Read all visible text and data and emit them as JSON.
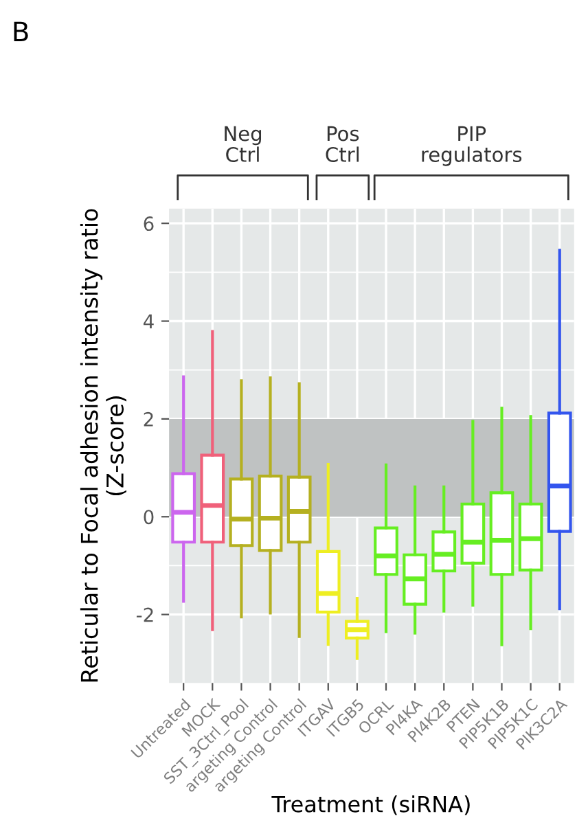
{
  "chart_data": {
    "type": "box",
    "xlabel": "Treatment (siRNA)",
    "ylabel": "Reticular to Focal adhesion intensity ratio\n(Z-score)",
    "categories": [
      "Untreated",
      "MOCK",
      "SST_3Ctrl_Pool",
      "argeting Control",
      "argeting Control",
      "ITGAV",
      "ITGB5",
      "OCRL",
      "PI4KA",
      "PI4K2B",
      "PTEN",
      "PIP5K1B",
      "PIP5K1C",
      "PIK3C2A"
    ],
    "colors": [
      "#cc66ee",
      "#f0607a",
      "#b5b020",
      "#b5b020",
      "#b5b020",
      "#eeee22",
      "#eeee22",
      "#66ee22",
      "#66ee22",
      "#66ee22",
      "#66ee22",
      "#66ee22",
      "#66ee22",
      "#3355ee"
    ],
    "boxes": [
      {
        "low": -1.73,
        "q1": -0.52,
        "median": 0.09,
        "q3": 0.88,
        "high": 2.86
      },
      {
        "low": -2.31,
        "q1": -0.52,
        "median": 0.23,
        "q3": 1.26,
        "high": 3.79
      },
      {
        "low": -2.05,
        "q1": -0.59,
        "median": -0.05,
        "q3": 0.77,
        "high": 2.78
      },
      {
        "low": -1.97,
        "q1": -0.69,
        "median": -0.03,
        "q3": 0.83,
        "high": 2.84
      },
      {
        "low": -2.45,
        "q1": -0.52,
        "median": 0.11,
        "q3": 0.81,
        "high": 2.72
      },
      {
        "low": -2.61,
        "q1": -1.95,
        "median": -1.57,
        "q3": -0.71,
        "high": 1.07
      },
      {
        "low": -2.9,
        "q1": -2.48,
        "median": -2.31,
        "q3": -2.14,
        "high": -1.67
      },
      {
        "low": -2.35,
        "q1": -1.18,
        "median": -0.8,
        "q3": -0.23,
        "high": 1.06
      },
      {
        "low": -2.38,
        "q1": -1.79,
        "median": -1.27,
        "q3": -0.78,
        "high": 0.61
      },
      {
        "low": -1.93,
        "q1": -1.11,
        "median": -0.77,
        "q3": -0.31,
        "high": 0.61
      },
      {
        "low": -1.81,
        "q1": -0.95,
        "median": -0.52,
        "q3": 0.26,
        "high": 1.95
      },
      {
        "low": -2.62,
        "q1": -1.18,
        "median": -0.48,
        "q3": 0.49,
        "high": 2.22
      },
      {
        "low": -2.29,
        "q1": -1.09,
        "median": -0.45,
        "q3": 0.26,
        "high": 2.05
      },
      {
        "low": -1.88,
        "q1": -0.3,
        "median": 0.63,
        "q3": 2.12,
        "high": 5.45
      }
    ],
    "ylim": [
      -3.4,
      6.3
    ],
    "yticks": [
      -2,
      0,
      2,
      4,
      6
    ],
    "bands": [
      {
        "axis": "y",
        "from": 0,
        "to": 2,
        "color": "#bfc2c2"
      }
    ],
    "grid": true,
    "annotations": [
      "B",
      "Neg\nCtrl",
      "Pos\nCtrl",
      "PIP\nregulators"
    ]
  }
}
